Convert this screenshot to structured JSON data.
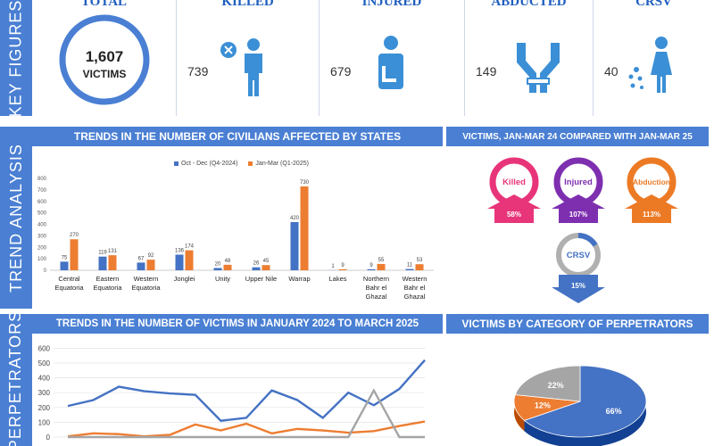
{
  "side_labels": {
    "key_figures": "KEY FIGURES",
    "trend_analysis": "TREND ANALYSIS",
    "perpetrators": "PERPETRATORS"
  },
  "key_figures": {
    "total": {
      "title": "TOTAL",
      "value": "1,607",
      "unit": "VICTIMS"
    },
    "killed": {
      "title": "KILLED",
      "value": "739",
      "icon": "killed-person-icon"
    },
    "injured": {
      "title": "INJURED",
      "value": "679",
      "icon": "injured-person-icon"
    },
    "abducted": {
      "title": "ABDUCTED",
      "value": "149",
      "icon": "bound-hands-icon"
    },
    "crsv": {
      "title": "CRSV",
      "value": "40",
      "icon": "crsv-woman-icon"
    }
  },
  "sections": {
    "states_title": "TRENDS IN THE NUMBER OF CIVILIANS AFFECTED BY STATES",
    "compare_title": "VICTIMS, JAN-MAR 24 COMPARED WITH JAN-MAR 25",
    "monthly_title": "TRENDS IN THE NUMBER OF VICTIMS IN JANUARY 2024 TO MARCH 2025",
    "perp_title": "VICTIMS BY CATEGORY OF PERPETRATORS"
  },
  "colors": {
    "blue": "#4472c4",
    "orange": "#ed7d31",
    "gray": "#a5a5a5",
    "header": "#4a7fd3",
    "killed": "#e8357a",
    "injured": "#7e2fb0",
    "abduction": "#ec7a25",
    "crsv": "#4472c4",
    "kf_title": "#1f5fbf"
  },
  "comparisons": [
    {
      "label": "Killed",
      "percent": "58%",
      "direction": "up",
      "color": "#e8357a"
    },
    {
      "label": "Injured",
      "percent": "107%",
      "direction": "up",
      "color": "#7e2fb0"
    },
    {
      "label": "Abduction",
      "percent": "113%",
      "direction": "up",
      "color": "#ec7a25"
    },
    {
      "label": "CRSV",
      "percent": "15%",
      "direction": "down",
      "color": "#4472c4"
    }
  ],
  "chart_data": [
    {
      "type": "bar",
      "categories": [
        "Central Equatoria",
        "Eastern Equatoria",
        "Western Equatoria",
        "Jonglei",
        "Unity",
        "Upper Nile",
        "Warrap",
        "Lakes",
        "Northern Bahr el Ghazal",
        "Western Bahr el Ghazal"
      ],
      "category_lines": [
        [
          "Central",
          "Equatoria"
        ],
        [
          "Eastern",
          "Equatoria"
        ],
        [
          "Western",
          "Equatoria"
        ],
        [
          "Jonglei"
        ],
        [
          "Unity"
        ],
        [
          "Upper Nile"
        ],
        [
          "Warrap"
        ],
        [
          "Lakes"
        ],
        [
          "Northern",
          "Bahr el",
          "Ghazal"
        ],
        [
          "Western",
          "Bahr el",
          "Ghazal"
        ]
      ],
      "series": [
        {
          "name": "Oct - Dec (Q4-2024)",
          "values": [
            75,
            119,
            67,
            136,
            20,
            26,
            420,
            1,
            9,
            11
          ]
        },
        {
          "name": "Jan-Mar (Q1-2025)",
          "values": [
            270,
            131,
            92,
            174,
            48,
            45,
            730,
            9,
            55,
            53
          ]
        }
      ],
      "yticks": [
        0,
        100,
        200,
        300,
        400,
        500,
        600,
        700,
        800
      ],
      "ylim": [
        0,
        800
      ],
      "legend_position": "top"
    },
    {
      "type": "line",
      "yticks": [
        0,
        100,
        200,
        300,
        400,
        500,
        600
      ],
      "ylim": [
        0,
        650
      ],
      "series": [
        {
          "color": "#4472c4",
          "values": [
            210,
            250,
            340,
            310,
            295,
            285,
            110,
            130,
            315,
            250,
            130,
            300,
            215,
            325,
            520
          ]
        },
        {
          "color": "#ed7d31",
          "values": [
            5,
            25,
            20,
            5,
            15,
            85,
            45,
            90,
            25,
            55,
            45,
            30,
            40,
            75,
            105
          ]
        },
        {
          "color": "#a5a5a5",
          "values": [
            0,
            0,
            0,
            0,
            0,
            0,
            0,
            0,
            0,
            0,
            0,
            0,
            315,
            0,
            0
          ]
        }
      ]
    },
    {
      "type": "pie",
      "slices": [
        {
          "label": "66%",
          "value": 66,
          "color": "#4472c4"
        },
        {
          "label": "12%",
          "value": 12,
          "color": "#ed7d31"
        },
        {
          "label": "22%",
          "value": 22,
          "color": "#a5a5a5"
        }
      ]
    }
  ]
}
